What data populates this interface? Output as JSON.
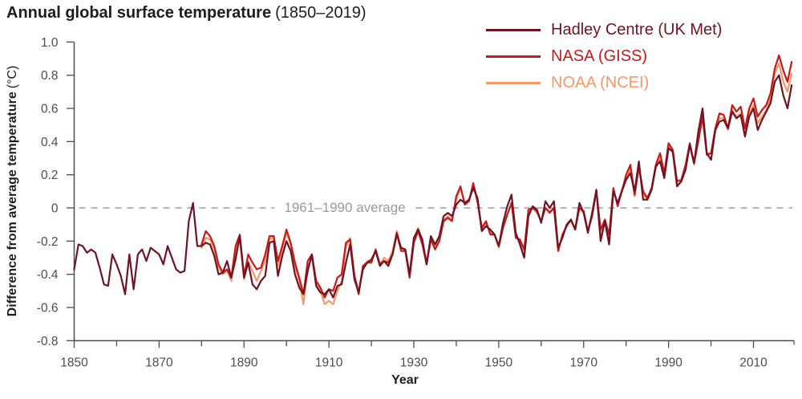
{
  "header": {
    "title_bold": "Annual global surface temperature",
    "title_suffix": "(1850–2019)"
  },
  "axes": {
    "x_label": "Year",
    "y_label_bold": "Difference from average temperature",
    "y_label_unit": "(°C)"
  },
  "colors": {
    "axis": "#4d4d4d",
    "tick_text": "#4d4d4d",
    "title_text": "#1d1d1b"
  },
  "chart_data": {
    "type": "line",
    "title": "Annual global surface temperature (1850–2019)",
    "xlabel": "Year",
    "ylabel": "Difference from average temperature (°C)",
    "xlim": [
      1850,
      2019
    ],
    "ylim": [
      -0.8,
      1.0
    ],
    "x_ticks": [
      1850,
      1870,
      1890,
      1910,
      1930,
      1950,
      1970,
      1990,
      2010
    ],
    "x_minor_tick_step": 10,
    "y_ticks": [
      -0.8,
      -0.6,
      -0.4,
      -0.2,
      0,
      0.2,
      0.4,
      0.6,
      0.8,
      1.0
    ],
    "grid": false,
    "legend_position": "top-right",
    "baseline": {
      "value": 0,
      "label": "1961–1990 average",
      "style": "dashed",
      "line_color": "#b5b5b5",
      "text_color": "#9a9a9a"
    },
    "series": [
      {
        "id": "hadley",
        "name": "Hadley Centre (UK Met)",
        "color": "#6e1423",
        "start_year": 1850,
        "values": [
          -0.37,
          -0.22,
          -0.23,
          -0.27,
          -0.25,
          -0.27,
          -0.36,
          -0.46,
          -0.47,
          -0.28,
          -0.34,
          -0.41,
          -0.52,
          -0.28,
          -0.49,
          -0.28,
          -0.25,
          -0.32,
          -0.24,
          -0.26,
          -0.28,
          -0.34,
          -0.23,
          -0.3,
          -0.37,
          -0.39,
          -0.38,
          -0.08,
          0.03,
          -0.23,
          -0.23,
          -0.21,
          -0.22,
          -0.29,
          -0.4,
          -0.39,
          -0.32,
          -0.42,
          -0.31,
          -0.17,
          -0.42,
          -0.33,
          -0.46,
          -0.49,
          -0.44,
          -0.41,
          -0.21,
          -0.2,
          -0.41,
          -0.29,
          -0.2,
          -0.26,
          -0.4,
          -0.48,
          -0.52,
          -0.38,
          -0.28,
          -0.47,
          -0.51,
          -0.52,
          -0.49,
          -0.54,
          -0.47,
          -0.46,
          -0.33,
          -0.22,
          -0.43,
          -0.51,
          -0.37,
          -0.33,
          -0.31,
          -0.26,
          -0.35,
          -0.32,
          -0.35,
          -0.28,
          -0.16,
          -0.24,
          -0.25,
          -0.4,
          -0.18,
          -0.13,
          -0.19,
          -0.34,
          -0.17,
          -0.22,
          -0.17,
          -0.05,
          -0.03,
          -0.05,
          0.02,
          0.05,
          0.03,
          0.05,
          0.12,
          0.06,
          -0.14,
          -0.11,
          -0.13,
          -0.16,
          -0.23,
          -0.09,
          0.01,
          0.08,
          -0.15,
          -0.22,
          -0.3,
          -0.05,
          0.01,
          -0.01,
          -0.09,
          0.04,
          0.0,
          0.04,
          -0.24,
          -0.18,
          -0.1,
          -0.07,
          -0.13,
          0.03,
          -0.03,
          -0.15,
          -0.03,
          0.11,
          -0.2,
          -0.08,
          -0.22,
          0.1,
          0.03,
          0.1,
          0.17,
          0.21,
          0.1,
          0.28,
          0.05,
          0.05,
          0.11,
          0.25,
          0.28,
          0.18,
          0.36,
          0.34,
          0.13,
          0.16,
          0.23,
          0.38,
          0.27,
          0.46,
          0.6,
          0.33,
          0.29,
          0.47,
          0.52,
          0.53,
          0.48,
          0.58,
          0.54,
          0.56,
          0.43,
          0.55,
          0.6,
          0.47,
          0.53,
          0.58,
          0.63,
          0.76,
          0.8,
          0.68,
          0.6,
          0.74
        ]
      },
      {
        "id": "nasa",
        "name": "NASA (GISS)",
        "color": "#c7191c",
        "start_year": 1880,
        "values": [
          -0.22,
          -0.14,
          -0.17,
          -0.23,
          -0.34,
          -0.39,
          -0.37,
          -0.42,
          -0.23,
          -0.16,
          -0.41,
          -0.28,
          -0.33,
          -0.37,
          -0.36,
          -0.28,
          -0.17,
          -0.17,
          -0.32,
          -0.23,
          -0.13,
          -0.21,
          -0.33,
          -0.42,
          -0.52,
          -0.32,
          -0.28,
          -0.44,
          -0.48,
          -0.54,
          -0.49,
          -0.5,
          -0.42,
          -0.4,
          -0.21,
          -0.19,
          -0.41,
          -0.52,
          -0.35,
          -0.33,
          -0.33,
          -0.25,
          -0.34,
          -0.32,
          -0.33,
          -0.28,
          -0.15,
          -0.26,
          -0.26,
          -0.42,
          -0.21,
          -0.14,
          -0.22,
          -0.34,
          -0.19,
          -0.25,
          -0.2,
          -0.08,
          -0.06,
          -0.08,
          0.07,
          0.13,
          0.02,
          0.04,
          0.15,
          0.04,
          -0.12,
          -0.08,
          -0.16,
          -0.16,
          -0.23,
          -0.12,
          -0.04,
          0.03,
          -0.18,
          -0.19,
          -0.25,
          -0.01,
          0.0,
          -0.02,
          -0.08,
          0.0,
          -0.03,
          0.0,
          -0.26,
          -0.16,
          -0.11,
          -0.07,
          -0.13,
          0.0,
          -0.02,
          -0.14,
          -0.05,
          0.1,
          -0.13,
          -0.07,
          -0.16,
          0.12,
          0.01,
          0.1,
          0.2,
          0.26,
          0.08,
          0.25,
          0.1,
          0.06,
          0.12,
          0.26,
          0.33,
          0.21,
          0.39,
          0.35,
          0.16,
          0.17,
          0.26,
          0.39,
          0.27,
          0.4,
          0.55,
          0.32,
          0.33,
          0.48,
          0.57,
          0.56,
          0.48,
          0.62,
          0.58,
          0.61,
          0.48,
          0.6,
          0.66,
          0.55,
          0.59,
          0.62,
          0.69,
          0.84,
          0.92,
          0.83,
          0.76,
          0.88
        ]
      },
      {
        "id": "noaa",
        "name": "NOAA (NCEI)",
        "color": "#f4996b",
        "start_year": 1880,
        "values": [
          -0.24,
          -0.18,
          -0.19,
          -0.25,
          -0.36,
          -0.4,
          -0.38,
          -0.44,
          -0.26,
          -0.19,
          -0.43,
          -0.32,
          -0.38,
          -0.44,
          -0.38,
          -0.32,
          -0.19,
          -0.18,
          -0.35,
          -0.25,
          -0.15,
          -0.22,
          -0.35,
          -0.44,
          -0.58,
          -0.36,
          -0.3,
          -0.46,
          -0.5,
          -0.58,
          -0.56,
          -0.58,
          -0.5,
          -0.44,
          -0.24,
          -0.18,
          -0.4,
          -0.5,
          -0.36,
          -0.32,
          -0.32,
          -0.26,
          -0.34,
          -0.3,
          -0.32,
          -0.26,
          -0.14,
          -0.24,
          -0.26,
          -0.42,
          -0.19,
          -0.12,
          -0.2,
          -0.33,
          -0.18,
          -0.24,
          -0.18,
          -0.07,
          -0.05,
          -0.07,
          0.05,
          0.12,
          0.03,
          0.04,
          0.14,
          0.03,
          -0.13,
          -0.09,
          -0.15,
          -0.16,
          -0.24,
          -0.12,
          -0.04,
          0.03,
          -0.17,
          -0.2,
          -0.26,
          -0.02,
          0.0,
          -0.03,
          -0.08,
          0.0,
          -0.02,
          0.0,
          -0.25,
          -0.17,
          -0.1,
          -0.08,
          -0.12,
          0.0,
          -0.03,
          -0.14,
          -0.04,
          0.1,
          -0.15,
          -0.08,
          -0.17,
          0.11,
          0.02,
          0.11,
          0.18,
          0.24,
          0.07,
          0.24,
          0.08,
          0.05,
          0.11,
          0.24,
          0.3,
          0.19,
          0.37,
          0.33,
          0.14,
          0.16,
          0.25,
          0.38,
          0.26,
          0.42,
          0.56,
          0.33,
          0.33,
          0.46,
          0.54,
          0.54,
          0.47,
          0.59,
          0.55,
          0.57,
          0.46,
          0.57,
          0.62,
          0.51,
          0.55,
          0.59,
          0.66,
          0.81,
          0.87,
          0.76,
          0.7,
          0.81
        ]
      }
    ]
  }
}
